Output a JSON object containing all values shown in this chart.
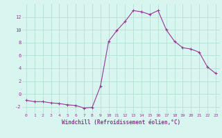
{
  "x": [
    0,
    1,
    2,
    3,
    4,
    5,
    6,
    7,
    8,
    9,
    10,
    11,
    12,
    13,
    14,
    15,
    16,
    17,
    18,
    19,
    20,
    21,
    22,
    23
  ],
  "y": [
    -1.0,
    -1.2,
    -1.2,
    -1.4,
    -1.5,
    -1.7,
    -1.8,
    -2.2,
    -2.1,
    1.2,
    8.2,
    9.9,
    11.3,
    13.0,
    12.8,
    12.4,
    13.0,
    10.0,
    8.2,
    7.2,
    7.0,
    6.5,
    4.2,
    3.2
  ],
  "line_color": "#993399",
  "marker": "+",
  "marker_size": 3,
  "bg_color": "#d8f5f0",
  "grid_color": "#aaddcc",
  "xlabel": "Windchill (Refroidissement éolien,°C)",
  "xlabel_color": "#993399",
  "tick_color": "#993399",
  "xlim": [
    -0.5,
    23.5
  ],
  "ylim": [
    -3.0,
    14.0
  ],
  "yticks": [
    -2,
    0,
    2,
    4,
    6,
    8,
    10,
    12
  ],
  "xticks": [
    0,
    1,
    2,
    3,
    4,
    5,
    6,
    7,
    8,
    9,
    10,
    11,
    12,
    13,
    14,
    15,
    16,
    17,
    18,
    19,
    20,
    21,
    22,
    23
  ]
}
